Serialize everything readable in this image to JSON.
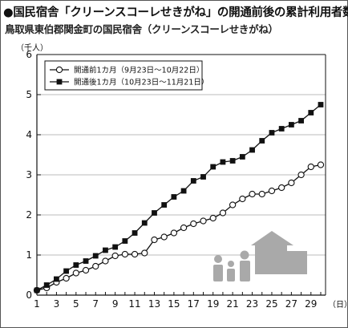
{
  "header": {
    "title": "●国民宿舎「クリーンスコーレせきがね」の開通前後の累計利用者数",
    "subtitle": "鳥取県東伯郡関金町の国民宿舎（クリーンスコーレせきがね）"
  },
  "chart_data": {
    "type": "line",
    "title": "国民宿舎「クリーンスコーレせきがね」の開通前後の累計利用者数",
    "subtitle": "鳥取県東伯郡関金町の国民宿舎（クリーンスコーレせきがね）",
    "xlabel": "（日）",
    "ylabel": "（千人）",
    "ylim": [
      0,
      6
    ],
    "xlim": [
      1,
      30
    ],
    "x_tick_labels": [
      "1",
      "3",
      "5",
      "7",
      "9",
      "11",
      "13",
      "15",
      "17",
      "19",
      "21",
      "23",
      "25",
      "27",
      "29"
    ],
    "y_tick_labels": [
      "0",
      "1",
      "2",
      "3",
      "4",
      "5",
      "6"
    ],
    "grid": "horizontal",
    "legend_position": "top-left",
    "x": [
      1,
      2,
      3,
      4,
      5,
      6,
      7,
      8,
      9,
      10,
      11,
      12,
      13,
      14,
      15,
      16,
      17,
      18,
      19,
      20,
      21,
      22,
      23,
      24,
      25,
      26,
      27,
      28,
      29,
      30
    ],
    "series": [
      {
        "name": "開通前1カ月（9月23日〜10月22日）",
        "marker": "open-circle",
        "values": [
          0.12,
          0.18,
          0.32,
          0.42,
          0.55,
          0.62,
          0.72,
          0.85,
          0.98,
          1.02,
          1.02,
          1.05,
          1.38,
          1.45,
          1.55,
          1.68,
          1.78,
          1.85,
          1.92,
          2.05,
          2.25,
          2.4,
          2.52,
          2.52,
          2.6,
          2.68,
          2.8,
          3.0,
          3.2,
          3.25
        ]
      },
      {
        "name": "開通後1カ月（10月23日〜11月21日）",
        "marker": "filled-square",
        "values": [
          0.12,
          0.25,
          0.4,
          0.6,
          0.75,
          0.85,
          0.98,
          1.12,
          1.2,
          1.35,
          1.55,
          1.8,
          2.05,
          2.25,
          2.45,
          2.6,
          2.85,
          2.95,
          3.2,
          3.32,
          3.35,
          3.45,
          3.62,
          3.85,
          4.05,
          4.15,
          4.25,
          4.35,
          4.55,
          4.75
        ]
      }
    ]
  },
  "colors": {
    "axis": "#111111",
    "grid": "#bbbbbb",
    "line": "#111111",
    "icon": "#aaaaaa",
    "background": "#ffffff"
  },
  "decoration": {
    "icon": "family-house-icon"
  }
}
